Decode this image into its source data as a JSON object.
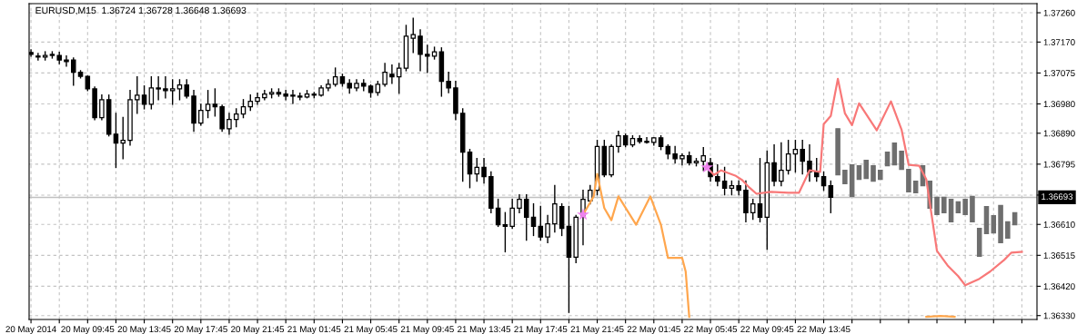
{
  "chart_data": {
    "type": "candlestick",
    "title": "EURUSD,M15  1.36724 1.36728 1.36648 1.36693",
    "xlim": [
      "2014-05-20T05:37",
      "2014-05-23T04:49"
    ],
    "xticks": [
      {
        "value": "2014-05-20T05:45",
        "label": "20 May 2014"
      },
      {
        "value": "2014-05-20T07:45",
        "label": null
      },
      {
        "value": "2014-05-20T09:45",
        "label": "20 May 09:45"
      },
      {
        "value": "2014-05-20T11:45",
        "label": null
      },
      {
        "value": "2014-05-20T13:45",
        "label": "20 May 13:45"
      },
      {
        "value": "2014-05-20T15:45",
        "label": null
      },
      {
        "value": "2014-05-20T17:45",
        "label": "20 May 17:45"
      },
      {
        "value": "2014-05-20T19:45",
        "label": null
      },
      {
        "value": "2014-05-20T21:45",
        "label": "20 May 21:45"
      },
      {
        "value": "2014-05-20T23:45",
        "label": null
      },
      {
        "value": "2014-05-21T01:45",
        "label": "21 May 01:45"
      },
      {
        "value": "2014-05-21T03:45",
        "label": null
      },
      {
        "value": "2014-05-21T05:45",
        "label": "21 May 05:45"
      },
      {
        "value": "2014-05-21T07:45",
        "label": null
      },
      {
        "value": "2014-05-21T09:45",
        "label": "21 May 09:45"
      },
      {
        "value": "2014-05-21T11:45",
        "label": null
      },
      {
        "value": "2014-05-21T13:45",
        "label": "21 May 13:45"
      },
      {
        "value": "2014-05-21T15:45",
        "label": null
      },
      {
        "value": "2014-05-21T17:45",
        "label": "21 May 17:45"
      },
      {
        "value": "2014-05-21T19:45",
        "label": null
      },
      {
        "value": "2014-05-21T21:45",
        "label": "21 May 21:45"
      },
      {
        "value": "2014-05-21T23:45",
        "label": null
      },
      {
        "value": "2014-05-22T01:45",
        "label": "22 May 01:45"
      },
      {
        "value": "2014-05-22T03:45",
        "label": null
      },
      {
        "value": "2014-05-22T05:45",
        "label": "22 May 05:45"
      },
      {
        "value": "2014-05-22T07:45",
        "label": null
      },
      {
        "value": "2014-05-22T09:45",
        "label": "22 May 09:45"
      },
      {
        "value": "2014-05-22T11:45",
        "label": null
      },
      {
        "value": "2014-05-22T13:45",
        "label": "22 May 13:45"
      },
      {
        "value": "2014-05-22T15:45",
        "label": null
      },
      {
        "value": "2014-05-22T17:45",
        "label": null
      },
      {
        "value": "2014-05-22T19:45",
        "label": null
      },
      {
        "value": "2014-05-22T21:45",
        "label": null
      },
      {
        "value": "2014-05-22T23:45",
        "label": null
      },
      {
        "value": "2014-05-23T01:45",
        "label": null
      },
      {
        "value": "2014-05-23T03:45",
        "label": null
      }
    ],
    "ylim": [
      1.36318,
      1.37288
    ],
    "yticks": [
      {
        "value": 1.3726,
        "label": "1.37260"
      },
      {
        "value": 1.3717,
        "label": "1.37170"
      },
      {
        "value": 1.37075,
        "label": "1.37075"
      },
      {
        "value": 1.3698,
        "label": "1.36980"
      },
      {
        "value": 1.3689,
        "label": "1.36890"
      },
      {
        "value": 1.36795,
        "label": "1.36795"
      },
      {
        "value": 1.367,
        "label": null
      },
      {
        "value": 1.3661,
        "label": "1.36610"
      },
      {
        "value": 1.36515,
        "label": "1.36515"
      },
      {
        "value": 1.3642,
        "label": "1.36420"
      },
      {
        "value": 1.3633,
        "label": "1.36330"
      }
    ],
    "grid": true,
    "ref_lines": [
      {
        "axis": "y",
        "value": 1.36693,
        "label": "1.36693",
        "color": "#c0c0c0"
      }
    ],
    "color": "#000000",
    "x": [
      "2014-05-20T05:45",
      "2014-05-20T06:15",
      "2014-05-20T06:45",
      "2014-05-20T07:15",
      "2014-05-20T07:45",
      "2014-05-20T08:15",
      "2014-05-20T08:45",
      "2014-05-20T09:15",
      "2014-05-20T09:45",
      "2014-05-20T10:15",
      "2014-05-20T10:45",
      "2014-05-20T11:15",
      "2014-05-20T11:45",
      "2014-05-20T12:15",
      "2014-05-20T12:45",
      "2014-05-20T13:15",
      "2014-05-20T13:45",
      "2014-05-20T14:15",
      "2014-05-20T14:45",
      "2014-05-20T15:15",
      "2014-05-20T15:45",
      "2014-05-20T16:15",
      "2014-05-20T16:45",
      "2014-05-20T17:15",
      "2014-05-20T17:45",
      "2014-05-20T18:15",
      "2014-05-20T18:45",
      "2014-05-20T19:15",
      "2014-05-20T19:45",
      "2014-05-20T20:15",
      "2014-05-20T20:45",
      "2014-05-20T21:15",
      "2014-05-20T21:45",
      "2014-05-20T22:15",
      "2014-05-20T22:45",
      "2014-05-20T23:15",
      "2014-05-20T23:45",
      "2014-05-21T00:15",
      "2014-05-21T00:45",
      "2014-05-21T01:15",
      "2014-05-21T01:45",
      "2014-05-21T02:15",
      "2014-05-21T02:45",
      "2014-05-21T03:15",
      "2014-05-21T03:45",
      "2014-05-21T04:15",
      "2014-05-21T04:45",
      "2014-05-21T05:15",
      "2014-05-21T05:45",
      "2014-05-21T06:15",
      "2014-05-21T06:45",
      "2014-05-21T07:15",
      "2014-05-21T07:45",
      "2014-05-21T08:15",
      "2014-05-21T08:45",
      "2014-05-21T09:15",
      "2014-05-21T09:45",
      "2014-05-21T10:15",
      "2014-05-21T10:45",
      "2014-05-21T11:15",
      "2014-05-21T11:45",
      "2014-05-21T12:15",
      "2014-05-21T12:45",
      "2014-05-21T13:15",
      "2014-05-21T13:45",
      "2014-05-21T14:15",
      "2014-05-21T14:45",
      "2014-05-21T15:15",
      "2014-05-21T15:45",
      "2014-05-21T16:15",
      "2014-05-21T16:45",
      "2014-05-21T17:15",
      "2014-05-21T17:45",
      "2014-05-21T18:15",
      "2014-05-21T18:45",
      "2014-05-21T19:15",
      "2014-05-21T19:45",
      "2014-05-21T20:15",
      "2014-05-21T20:45",
      "2014-05-21T21:15",
      "2014-05-21T21:45",
      "2014-05-21T22:15",
      "2014-05-21T22:45",
      "2014-05-21T23:15",
      "2014-05-21T23:45",
      "2014-05-22T00:15",
      "2014-05-22T00:45",
      "2014-05-22T01:15",
      "2014-05-22T01:45",
      "2014-05-22T02:15",
      "2014-05-22T02:45",
      "2014-05-22T03:15",
      "2014-05-22T03:45",
      "2014-05-22T04:15",
      "2014-05-22T04:45",
      "2014-05-22T05:15",
      "2014-05-22T05:45",
      "2014-05-22T06:15",
      "2014-05-22T06:45",
      "2014-05-22T07:15",
      "2014-05-22T07:45",
      "2014-05-22T08:15",
      "2014-05-22T08:45",
      "2014-05-22T09:15",
      "2014-05-22T09:45",
      "2014-05-22T10:15",
      "2014-05-22T10:45",
      "2014-05-22T11:15",
      "2014-05-22T11:45",
      "2014-05-22T12:15",
      "2014-05-22T12:45",
      "2014-05-22T13:15",
      "2014-05-22T13:45",
      "2014-05-22T14:15"
    ],
    "ohlc": [
      [
        1.37138,
        1.37146,
        1.37127,
        1.37132
      ],
      [
        1.37127,
        1.37135,
        1.37115,
        1.37124
      ],
      [
        1.37124,
        1.3714,
        1.37115,
        1.37129
      ],
      [
        1.37129,
        1.3714,
        1.37121,
        1.37132
      ],
      [
        1.37129,
        1.37138,
        1.37104,
        1.37115
      ],
      [
        1.37115,
        1.37127,
        1.37096,
        1.3711
      ],
      [
        1.37115,
        1.37121,
        1.37038,
        1.37077
      ],
      [
        1.37077,
        1.37082,
        1.3706,
        1.37065
      ],
      [
        1.37065,
        1.37065,
        1.37021,
        1.37026
      ],
      [
        1.37026,
        1.37032,
        1.36932,
        1.36938
      ],
      [
        1.36938,
        1.37007,
        1.36932,
        1.36993
      ],
      [
        1.36993,
        1.37007,
        1.36882,
        1.36887
      ],
      [
        1.36887,
        1.36951,
        1.36785,
        1.3686
      ],
      [
        1.3686,
        1.36938,
        1.36812,
        1.36868
      ],
      [
        1.36868,
        1.37021,
        1.36854,
        1.36993
      ],
      [
        1.36993,
        1.37063,
        1.36951,
        1.37007
      ],
      [
        1.37007,
        1.37035,
        1.36965,
        1.36979
      ],
      [
        1.36979,
        1.37063,
        1.36965,
        1.37029
      ],
      [
        1.37029,
        1.37063,
        1.36993,
        1.37026
      ],
      [
        1.37026,
        1.37063,
        1.36999,
        1.37021
      ],
      [
        1.37021,
        1.37054,
        1.36979,
        1.37026
      ],
      [
        1.37026,
        1.37054,
        1.36993,
        1.37038
      ],
      [
        1.37038,
        1.37054,
        1.36999,
        1.37004
      ],
      [
        1.37004,
        1.37021,
        1.36896,
        1.36921
      ],
      [
        1.36921,
        1.36979,
        1.36915,
        1.3696
      ],
      [
        1.3696,
        1.37021,
        1.36938,
        1.36979
      ],
      [
        1.36979,
        1.37026,
        1.36943,
        1.36971
      ],
      [
        1.36971,
        1.36976,
        1.36896,
        1.36904
      ],
      [
        1.36904,
        1.36951,
        1.36887,
        1.36932
      ],
      [
        1.36932,
        1.36965,
        1.3691,
        1.36949
      ],
      [
        1.36949,
        1.36993,
        1.36938,
        1.36971
      ],
      [
        1.36971,
        1.37007,
        1.3696,
        1.36988
      ],
      [
        1.36988,
        1.37013,
        1.36979,
        1.36999
      ],
      [
        1.36999,
        1.37021,
        1.36993,
        1.3701
      ],
      [
        1.3701,
        1.37026,
        1.36999,
        1.37015
      ],
      [
        1.37015,
        1.37026,
        1.37004,
        1.3701
      ],
      [
        1.3701,
        1.37021,
        1.36993,
        1.37004
      ],
      [
        1.37004,
        1.37021,
        1.36982,
        1.37007
      ],
      [
        1.37004,
        1.37013,
        1.36993,
        1.37001
      ],
      [
        1.37001,
        1.37021,
        1.36999,
        1.3701
      ],
      [
        1.3701,
        1.37015,
        1.36999,
        1.37007
      ],
      [
        1.37007,
        1.37035,
        1.37004,
        1.37029
      ],
      [
        1.37029,
        1.37054,
        1.37021,
        1.3704
      ],
      [
        1.3704,
        1.3709,
        1.37035,
        1.37063
      ],
      [
        1.37063,
        1.37071,
        1.37035,
        1.37043
      ],
      [
        1.37043,
        1.37054,
        1.37013,
        1.37029
      ],
      [
        1.37029,
        1.37054,
        1.37021,
        1.37043
      ],
      [
        1.37043,
        1.37054,
        1.37021,
        1.37035
      ],
      [
        1.37035,
        1.37038,
        1.37001,
        1.37015
      ],
      [
        1.37015,
        1.37049,
        1.37007,
        1.3704
      ],
      [
        1.3704,
        1.37104,
        1.37035,
        1.37077
      ],
      [
        1.37071,
        1.37099,
        1.37043,
        1.37063
      ],
      [
        1.37063,
        1.37104,
        1.37013,
        1.3709
      ],
      [
        1.3709,
        1.37221,
        1.37082,
        1.37188
      ],
      [
        1.37182,
        1.37243,
        1.37138,
        1.37193
      ],
      [
        1.37188,
        1.37207,
        1.37082,
        1.37132
      ],
      [
        1.37132,
        1.3716,
        1.37077,
        1.37127
      ],
      [
        1.37127,
        1.37154,
        1.37118,
        1.3714
      ],
      [
        1.3714,
        1.37152,
        1.37004,
        1.37049
      ],
      [
        1.37049,
        1.37077,
        1.37015,
        1.37029
      ],
      [
        1.37029,
        1.37049,
        1.36932,
        1.36951
      ],
      [
        1.36951,
        1.36965,
        1.36743,
        1.36832
      ],
      [
        1.36832,
        1.3684,
        1.36723,
        1.36765
      ],
      [
        1.36765,
        1.36812,
        1.36743,
        1.36785
      ],
      [
        1.36785,
        1.36812,
        1.36737,
        1.36757
      ],
      [
        1.36757,
        1.36771,
        1.36646,
        1.3666
      ],
      [
        1.3666,
        1.36687,
        1.36604,
        1.36609
      ],
      [
        1.36609,
        1.36646,
        1.36526,
        1.36604
      ],
      [
        1.36604,
        1.36687,
        1.36598,
        1.3666
      ],
      [
        1.3666,
        1.36701,
        1.36646,
        1.36687
      ],
      [
        1.36687,
        1.36701,
        1.36562,
        1.36632
      ],
      [
        1.36632,
        1.36673,
        1.36576,
        1.36604
      ],
      [
        1.36604,
        1.36665,
        1.36562,
        1.36571
      ],
      [
        1.36571,
        1.36637,
        1.36554,
        1.36612
      ],
      [
        1.36612,
        1.36729,
        1.36587,
        1.36673
      ],
      [
        1.36665,
        1.36673,
        1.36576,
        1.36598
      ],
      [
        1.36604,
        1.36665,
        1.3634,
        1.36509
      ],
      [
        1.36509,
        1.36637,
        1.36493,
        1.36632
      ],
      [
        1.36632,
        1.36715,
        1.36548,
        1.36687
      ],
      [
        1.36682,
        1.36729,
        1.36673,
        1.36715
      ],
      [
        1.36715,
        1.36868,
        1.36701,
        1.36849
      ],
      [
        1.36849,
        1.36868,
        1.36757,
        1.36762
      ],
      [
        1.36762,
        1.36854,
        1.36757,
        1.36849
      ],
      [
        1.36849,
        1.36896,
        1.36832,
        1.36882
      ],
      [
        1.36882,
        1.36887,
        1.36849,
        1.36854
      ],
      [
        1.36854,
        1.36882,
        1.36849,
        1.36874
      ],
      [
        1.36874,
        1.36882,
        1.3686,
        1.36865
      ],
      [
        1.36865,
        1.36876,
        1.3686,
        1.36862
      ],
      [
        1.36862,
        1.36876,
        1.36854,
        1.36876
      ],
      [
        1.36876,
        1.36882,
        1.3684,
        1.36849
      ],
      [
        1.36849,
        1.36854,
        1.36812,
        1.36826
      ],
      [
        1.36826,
        1.36849,
        1.36799,
        1.36812
      ],
      [
        1.36812,
        1.36826,
        1.36793,
        1.36821
      ],
      [
        1.36821,
        1.36832,
        1.36793,
        1.36799
      ],
      [
        1.36799,
        1.36812,
        1.3679,
        1.36804
      ],
      [
        1.36804,
        1.36846,
        1.36776,
        1.36821
      ],
      [
        1.36799,
        1.36812,
        1.36743,
        1.36757
      ],
      [
        1.36757,
        1.36793,
        1.36729,
        1.36743
      ],
      [
        1.36743,
        1.36785,
        1.36701,
        1.36721
      ],
      [
        1.36721,
        1.36743,
        1.36701,
        1.36729
      ],
      [
        1.36729,
        1.36743,
        1.36701,
        1.36715
      ],
      [
        1.36715,
        1.36743,
        1.36618,
        1.36646
      ],
      [
        1.36646,
        1.36687,
        1.36626,
        1.36673
      ],
      [
        1.36673,
        1.36812,
        1.36618,
        1.36632
      ],
      [
        1.36632,
        1.36835,
        1.36534,
        1.36799
      ],
      [
        1.36799,
        1.36854,
        1.36729,
        1.36743
      ],
      [
        1.36743,
        1.3686,
        1.36729,
        1.36776
      ],
      [
        1.36776,
        1.36868,
        1.36765,
        1.36826
      ],
      [
        1.36826,
        1.36868,
        1.36771,
        1.3684
      ],
      [
        1.3684,
        1.36868,
        1.36765,
        1.36804
      ],
      [
        1.36804,
        1.36854,
        1.36743,
        1.36771
      ],
      [
        1.36771,
        1.36812,
        1.36743,
        1.36757
      ],
      [
        1.36757,
        1.36771,
        1.36715,
        1.36729
      ],
      [
        1.36729,
        1.36743,
        1.36646,
        1.36693
      ]
    ],
    "series": [
      {
        "type": "candlestick",
        "color": "#6e6e6e",
        "x": [
          "2014-05-22T14:45",
          "2014-05-22T15:15",
          "2014-05-22T15:45",
          "2014-05-22T16:15",
          "2014-05-22T16:45",
          "2014-05-22T17:15",
          "2014-05-22T17:45",
          "2014-05-22T18:15",
          "2014-05-22T18:45",
          "2014-05-22T19:15",
          "2014-05-22T19:45",
          "2014-05-22T20:15",
          "2014-05-22T20:45",
          "2014-05-22T21:15",
          "2014-05-22T21:45",
          "2014-05-22T22:15",
          "2014-05-22T22:45",
          "2014-05-22T23:15",
          "2014-05-22T23:45",
          "2014-05-23T00:15",
          "2014-05-23T00:45",
          "2014-05-23T01:15",
          "2014-05-23T01:45",
          "2014-05-23T02:15",
          "2014-05-23T02:45",
          "2014-05-23T03:15"
        ],
        "ohlc": [
          [
            1.36904,
            1.36904,
            1.36762,
            1.36762
          ],
          [
            1.36776,
            1.36776,
            1.36735,
            1.36735
          ],
          [
            1.36793,
            1.36793,
            1.36696,
            1.36696
          ],
          [
            1.3679,
            1.3679,
            1.36748,
            1.36748
          ],
          [
            1.36807,
            1.36807,
            1.36751,
            1.36751
          ],
          [
            1.3679,
            1.3679,
            1.36743,
            1.36743
          ],
          [
            1.36776,
            1.36776,
            1.36748,
            1.36748
          ],
          [
            1.36832,
            1.36832,
            1.3679,
            1.3679
          ],
          [
            1.3686,
            1.3686,
            1.36793,
            1.36793
          ],
          [
            1.36835,
            1.36835,
            1.36779,
            1.36779
          ],
          [
            1.36779,
            1.36779,
            1.3671,
            1.3671
          ],
          [
            1.36743,
            1.36743,
            1.36707,
            1.36707
          ],
          [
            1.3679,
            1.3679,
            1.36729,
            1.36729
          ],
          [
            1.36743,
            1.36743,
            1.3666,
            1.3666
          ],
          [
            1.36693,
            1.36693,
            1.3664,
            1.3664
          ],
          [
            1.36693,
            1.36693,
            1.36646,
            1.36646
          ],
          [
            1.36687,
            1.36687,
            1.36618,
            1.36618
          ],
          [
            1.36679,
            1.36679,
            1.36646,
            1.36646
          ],
          [
            1.36687,
            1.36687,
            1.3664,
            1.3664
          ],
          [
            1.36696,
            1.36696,
            1.36618,
            1.36618
          ],
          [
            1.36598,
            1.36598,
            1.36512,
            1.36512
          ],
          [
            1.36665,
            1.36665,
            1.36582,
            1.36582
          ],
          [
            1.36637,
            1.36637,
            1.36584,
            1.36584
          ],
          [
            1.36668,
            1.36668,
            1.36554,
            1.36554
          ],
          [
            1.36618,
            1.36618,
            1.36568,
            1.36568
          ],
          [
            1.36646,
            1.36646,
            1.36609,
            1.36609
          ]
        ]
      },
      {
        "type": "line",
        "color": "#f87878",
        "x": [
          "2014-05-22T05:30",
          "2014-05-22T06:00",
          "2014-05-22T06:30",
          "2014-05-22T07:30",
          "2014-05-22T08:00",
          "2014-05-22T08:30",
          "2014-05-22T09:00",
          "2014-05-22T10:00",
          "2014-05-22T11:15",
          "2014-05-22T12:00",
          "2014-05-22T12:45",
          "2014-05-22T13:30",
          "2014-05-22T13:45",
          "2014-05-22T14:15",
          "2014-05-22T14:45",
          "2014-05-22T15:15",
          "2014-05-22T15:45",
          "2014-05-22T16:15",
          "2014-05-22T17:30",
          "2014-05-22T18:30",
          "2014-05-22T19:15",
          "2014-05-22T19:45",
          "2014-05-22T20:30",
          "2014-05-22T21:00",
          "2014-05-22T21:45",
          "2014-05-22T22:30",
          "2014-05-22T23:15",
          "2014-05-22T23:45",
          "2014-05-23T00:45",
          "2014-05-23T01:30",
          "2014-05-23T02:30",
          "2014-05-23T03:00",
          "2014-05-23T03:45"
        ],
        "values": [
          1.36785,
          1.36762,
          1.36776,
          1.3676,
          1.36746,
          1.36723,
          1.36704,
          1.3671,
          1.36707,
          1.36707,
          1.36776,
          1.36771,
          1.36918,
          1.36943,
          1.37057,
          1.36951,
          1.36915,
          1.36982,
          1.36899,
          1.36988,
          1.36901,
          1.36793,
          1.3679,
          1.36748,
          1.36529,
          1.36484,
          1.36451,
          1.36423,
          1.36443,
          1.36465,
          1.36501,
          1.36523,
          1.36526
        ]
      },
      {
        "type": "line",
        "color": "#ffa64d",
        "x": [
          "2014-05-21T20:45",
          "2014-05-21T21:30",
          "2014-05-21T21:45",
          "2014-05-21T22:15",
          "2014-05-21T22:45",
          "2014-05-21T23:15",
          "2014-05-22T00:30",
          "2014-05-22T01:30",
          "2014-05-22T02:15",
          "2014-05-22T02:45",
          "2014-05-22T03:45",
          "2014-05-22T04:00",
          "2014-05-22T04:15",
          "2014-05-22T12:00",
          "2014-05-22T21:00",
          "2014-05-22T22:00",
          "2014-05-22T23:00"
        ],
        "values": [
          1.3664,
          1.36696,
          1.36765,
          1.3666,
          1.36623,
          1.36696,
          1.36609,
          1.36696,
          1.36609,
          1.36507,
          1.36507,
          1.36465,
          1.36326,
          null,
          1.36326,
          1.36329,
          1.36326
        ]
      },
      {
        "type": "scatter",
        "color": "#ee82ee",
        "marker": "star",
        "x": [
          "2014-05-21T20:45",
          "2014-05-22T05:30"
        ],
        "values": [
          1.3664,
          1.36785
        ]
      }
    ]
  }
}
